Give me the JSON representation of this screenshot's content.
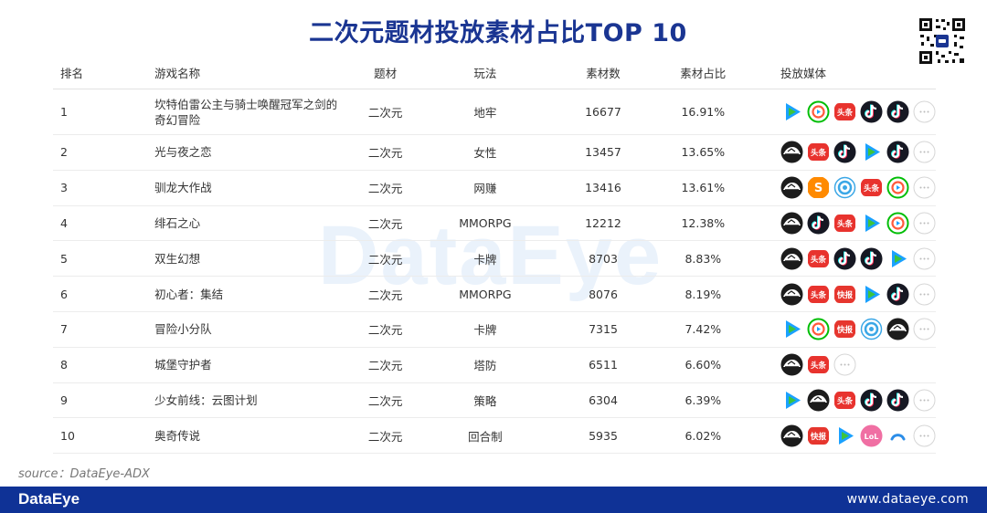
{
  "title": "二次元题材投放素材占比TOP 10",
  "watermark": "DataEye",
  "table": {
    "headers": {
      "rank": "排名",
      "name": "游戏名称",
      "theme": "题材",
      "gameplay": "玩法",
      "count": "素材数",
      "share": "素材占比",
      "media": "投放媒体"
    },
    "rows": [
      {
        "rank": "1",
        "name": "坎特伯雷公主与骑士唤醒冠军之剑的奇幻冒险",
        "theme": "二次元",
        "gameplay": "地牢",
        "count": "16677",
        "share": "16.91%",
        "media": [
          "tencent-video",
          "iqiyi",
          "toutiao",
          "douyin",
          "douyin",
          "more"
        ]
      },
      {
        "rank": "2",
        "name": "光与夜之恋",
        "theme": "二次元",
        "gameplay": "女性",
        "count": "13457",
        "share": "13.65%",
        "media": [
          "pangle",
          "toutiao",
          "douyin",
          "tencent-video",
          "douyin",
          "more"
        ]
      },
      {
        "rank": "3",
        "name": "驯龙大作战",
        "theme": "二次元",
        "gameplay": "网赚",
        "count": "13416",
        "share": "13.61%",
        "media": [
          "pangle",
          "sogou",
          "bilibili",
          "toutiao",
          "iqiyi",
          "more"
        ]
      },
      {
        "rank": "4",
        "name": "绯石之心",
        "theme": "二次元",
        "gameplay": "MMORPG",
        "count": "12212",
        "share": "12.38%",
        "media": [
          "pangle",
          "douyin",
          "toutiao",
          "tencent-video",
          "iqiyi",
          "more"
        ]
      },
      {
        "rank": "5",
        "name": "双生幻想",
        "theme": "二次元",
        "gameplay": "卡牌",
        "count": "8703",
        "share": "8.83%",
        "media": [
          "pangle",
          "toutiao",
          "douyin",
          "douyin",
          "tencent-video",
          "more"
        ]
      },
      {
        "rank": "6",
        "name": "初心者：集结",
        "theme": "二次元",
        "gameplay": "MMORPG",
        "count": "8076",
        "share": "8.19%",
        "media": [
          "pangle",
          "toutiao",
          "kuaishou",
          "tencent-video",
          "douyin",
          "more"
        ]
      },
      {
        "rank": "7",
        "name": "冒险小分队",
        "theme": "二次元",
        "gameplay": "卡牌",
        "count": "7315",
        "share": "7.42%",
        "media": [
          "tencent-video",
          "iqiyi",
          "kuaishou",
          "bilibili",
          "pangle",
          "more"
        ]
      },
      {
        "rank": "8",
        "name": "城堡守护者",
        "theme": "二次元",
        "gameplay": "塔防",
        "count": "6511",
        "share": "6.60%",
        "media": [
          "pangle",
          "toutiao",
          "more"
        ]
      },
      {
        "rank": "9",
        "name": "少女前线：云图计划",
        "theme": "二次元",
        "gameplay": "策略",
        "count": "6304",
        "share": "6.39%",
        "media": [
          "tencent-video",
          "pangle",
          "toutiao",
          "douyin",
          "douyin",
          "more"
        ]
      },
      {
        "rank": "10",
        "name": "奥奇传说",
        "theme": "二次元",
        "gameplay": "回合制",
        "count": "5935",
        "share": "6.02%",
        "media": [
          "pangle",
          "kuaishou",
          "tencent-video",
          "lele",
          "bilibili-blue",
          "more"
        ]
      }
    ]
  },
  "media_icons": {
    "tencent-video": {
      "color": "#1aa1ff",
      "accent": "#3cc43c"
    },
    "iqiyi": {
      "color": "#00be06"
    },
    "toutiao": {
      "color": "#e8332e",
      "text": "头条"
    },
    "douyin": {
      "color": "#161823"
    },
    "pangle": {
      "color": "#1c1c1c"
    },
    "sogou": {
      "color": "#ff8a00"
    },
    "bilibili": {
      "color": "#3ba7e6"
    },
    "kuaishou": {
      "color": "#e6362e",
      "text": "快报"
    },
    "lele": {
      "color": "#f06fa3"
    },
    "bilibili-blue": {
      "color": "#2b8de8"
    },
    "more": {
      "color": "#d6d6d6"
    }
  },
  "source": "source：DataEye-ADX",
  "footer": {
    "logo": "DataEye",
    "site": "www.dataeye.com"
  }
}
